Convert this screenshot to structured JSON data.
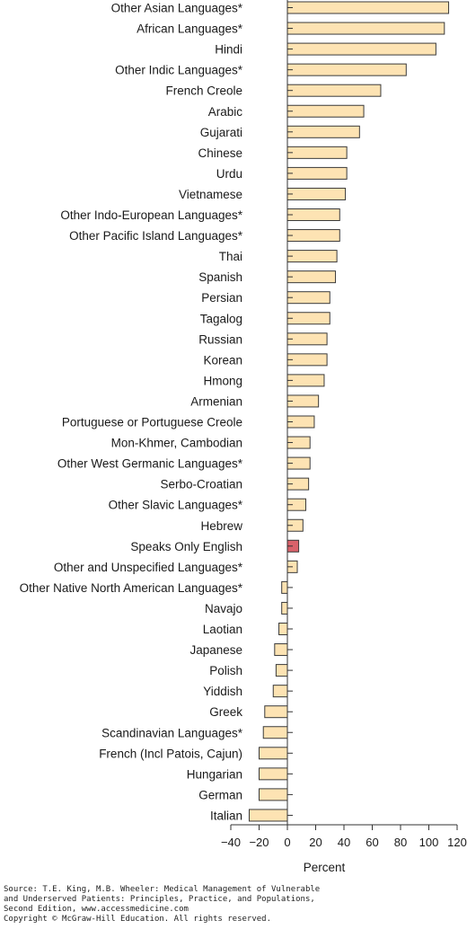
{
  "chart_data": {
    "type": "bar",
    "orientation": "horizontal",
    "categories": [
      "Other Asian Languages*",
      "African Languages*",
      "Hindi",
      "Other Indic Languages*",
      "French Creole",
      "Arabic",
      "Gujarati",
      "Chinese",
      "Urdu",
      "Vietnamese",
      "Other Indo-European Languages*",
      "Other Pacific Island Languages*",
      "Thai",
      "Spanish",
      "Persian",
      "Tagalog",
      "Russian",
      "Korean",
      "Hmong",
      "Armenian",
      "Portuguese or Portuguese Creole",
      "Mon-Khmer, Cambodian",
      "Other West Germanic Languages*",
      "Serbo-Croatian",
      "Other Slavic Languages*",
      "Hebrew",
      "Speaks Only English",
      "Other and Unspecified Languages*",
      "Other Native North American Languages*",
      "Navajo",
      "Laotian",
      "Japanese",
      "Polish",
      "Yiddish",
      "Greek",
      "Scandinavian Languages*",
      "French (Incl Patois, Cajun)",
      "Hungarian",
      "German",
      "Italian"
    ],
    "values": [
      114,
      111,
      105,
      84,
      66,
      54,
      51,
      42,
      42,
      41,
      37,
      37,
      35,
      34,
      30,
      30,
      28,
      28,
      26,
      22,
      19,
      16,
      16,
      15,
      13,
      11,
      8,
      7,
      -4,
      -4,
      -6,
      -9,
      -8,
      -10,
      -16,
      -17,
      -20,
      -20,
      -20,
      -27
    ],
    "highlight": "Speaks Only English",
    "xlabel": "Percent",
    "xlim": [
      -40,
      120
    ],
    "xticks": [
      -40,
      -20,
      0,
      20,
      40,
      60,
      80,
      100,
      120
    ],
    "colors": {
      "bar": "#fde3b3",
      "highlight": "#d9626b",
      "stroke": "#3a3a3a"
    }
  },
  "source": {
    "lines": [
      "Source: T.E. King, M.B. Wheeler: Medical Management of Vulnerable",
      "and Underserved Patients: Principles, Practice, and Populations,",
      "Second Edition, www.accessmedicine.com",
      "Copyright © McGraw-Hill Education. All rights reserved."
    ]
  }
}
